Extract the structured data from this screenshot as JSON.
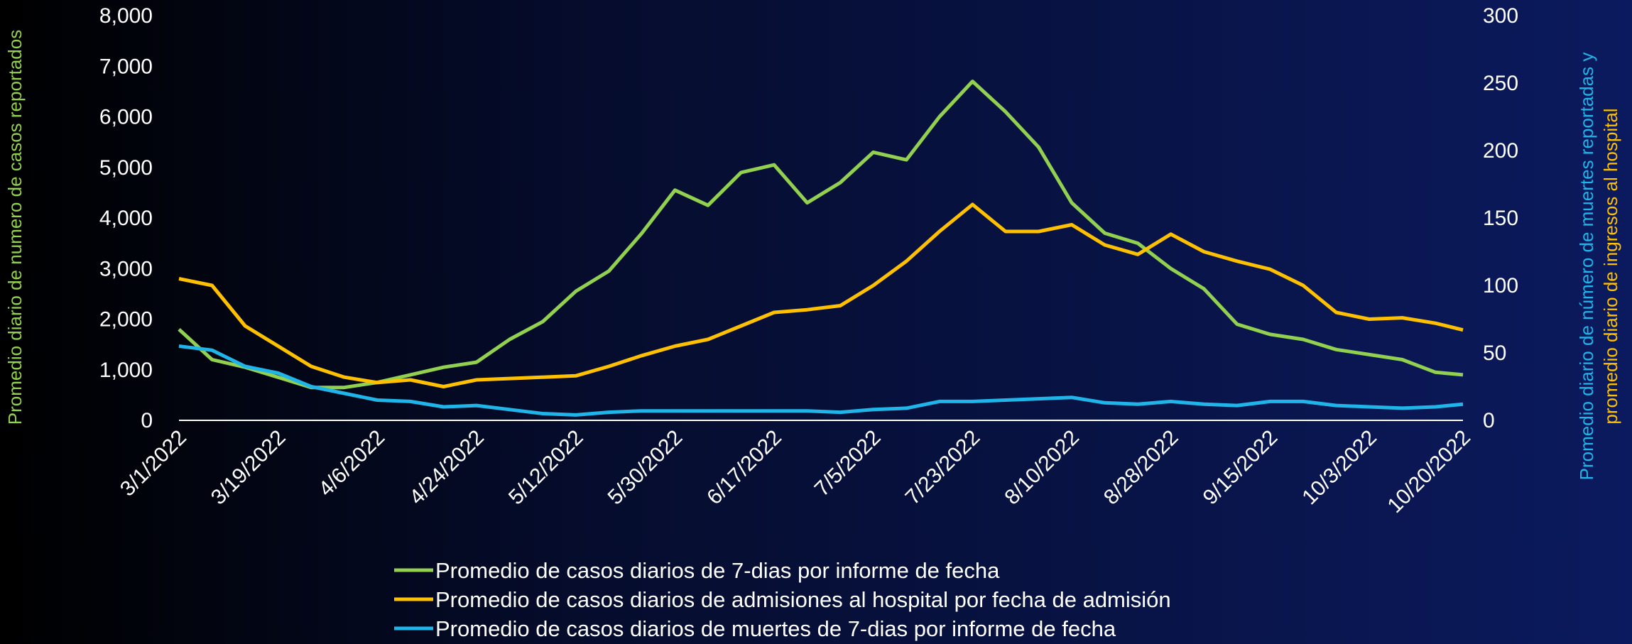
{
  "chart_data": {
    "type": "line",
    "y_label": "Promedio diario de numero de casos reportados",
    "y2_label_lines": [
      {
        "text": "Promedio diario de número de muertes reportadas y",
        "color": "#1fb5e8"
      },
      {
        "text": "promedio  diario de ingresos al hospital",
        "color": "#ffc000"
      }
    ],
    "x": [
      "3/1/2022",
      "3/7/2022",
      "3/13/2022",
      "3/19/2022",
      "3/25/2022",
      "3/31/2022",
      "4/6/2022",
      "4/12/2022",
      "4/18/2022",
      "4/24/2022",
      "4/30/2022",
      "5/6/2022",
      "5/12/2022",
      "5/18/2022",
      "5/24/2022",
      "5/30/2022",
      "6/5/2022",
      "6/11/2022",
      "6/17/2022",
      "6/23/2022",
      "6/29/2022",
      "7/5/2022",
      "7/11/2022",
      "7/17/2022",
      "7/23/2022",
      "7/29/2022",
      "8/4/2022",
      "8/10/2022",
      "8/16/2022",
      "8/22/2022",
      "8/28/2022",
      "9/3/2022",
      "9/9/2022",
      "9/15/2022",
      "9/21/2022",
      "9/27/2022",
      "10/3/2022",
      "10/9/2022",
      "10/15/2022",
      "10/20/2022"
    ],
    "xlim": [
      "3/1/2022",
      "10/20/2022"
    ],
    "xticks": [
      "3/1/2022",
      "3/19/2022",
      "4/6/2022",
      "4/24/2022",
      "5/12/2022",
      "5/30/2022",
      "6/17/2022",
      "7/5/2022",
      "7/23/2022",
      "8/10/2022",
      "8/28/2022",
      "9/15/2022",
      "10/3/2022",
      "10/20/2022"
    ],
    "series": [
      {
        "name": "Promedio de casos diarios de 7-dias por informe de fecha",
        "color": "#92d050",
        "axis": "y",
        "values": [
          1800,
          1200,
          1050,
          850,
          650,
          650,
          750,
          900,
          1050,
          1150,
          1600,
          1950,
          2550,
          2950,
          3700,
          4550,
          4250,
          4900,
          5050,
          4300,
          4700,
          5300,
          5150,
          6000,
          6700,
          6100,
          5400,
          4300,
          3700,
          3500,
          3000,
          2600,
          1900,
          1700,
          1600,
          1400,
          1300,
          1200,
          950,
          900
        ]
      },
      {
        "name": "Promedio de casos diarios de admisiones al hospital por fecha de admisión",
        "color": "#ffc000",
        "axis": "y2",
        "values": [
          105,
          100,
          70,
          55,
          40,
          32,
          28,
          30,
          25,
          30,
          31,
          32,
          33,
          40,
          48,
          55,
          60,
          70,
          80,
          82,
          85,
          100,
          118,
          140,
          160,
          140,
          140,
          145,
          130,
          123,
          138,
          125,
          118,
          112,
          100,
          80,
          75,
          76,
          72,
          67
        ]
      },
      {
        "name": "Promedio de casos diarios de muertes de 7-dias por informe de fecha",
        "color": "#1fb5e8",
        "axis": "y2",
        "values": [
          55,
          52,
          40,
          35,
          25,
          20,
          15,
          14,
          10,
          11,
          8,
          5,
          4,
          6,
          7,
          7,
          7,
          7,
          7,
          7,
          6,
          8,
          9,
          14,
          14,
          15,
          16,
          17,
          13,
          12,
          14,
          12,
          11,
          14,
          14,
          11,
          10,
          9,
          10,
          12
        ]
      }
    ],
    "ylim": [
      0,
      8000
    ],
    "yticks": [
      0,
      {
        "value": 1000,
        "label": "1,000"
      },
      {
        "value": 2000,
        "label": "2,000"
      },
      {
        "value": 3000,
        "label": "3,000"
      },
      {
        "value": 4000,
        "label": "4,000"
      },
      {
        "value": 5000,
        "label": "5,000"
      },
      {
        "value": 6000,
        "label": "6,000"
      },
      {
        "value": 7000,
        "label": "7,000"
      },
      {
        "value": 8000,
        "label": "8,000"
      }
    ],
    "y2lim": [
      0,
      300
    ],
    "y2ticks": [
      0,
      50,
      100,
      150,
      200,
      250,
      300
    ],
    "legend": "bottom"
  }
}
